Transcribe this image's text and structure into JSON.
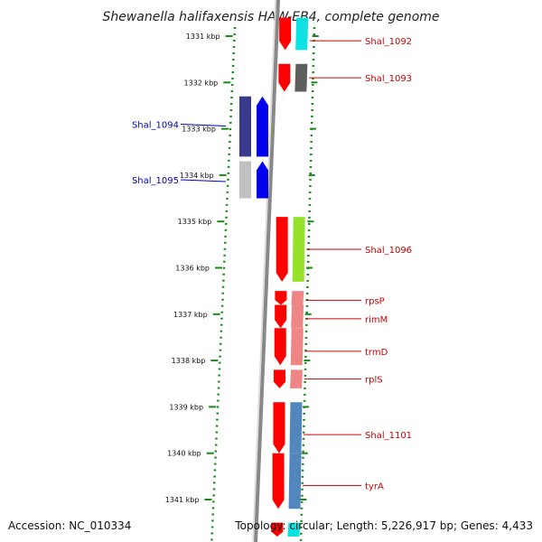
{
  "title": "Shewanella halifaxensis HAW-EB4, complete genome",
  "footer": {
    "accession": "Accession: NC_010334",
    "topology": "Topology: circular; Length: 5,226,917 bp; Genes: 4,433"
  },
  "scale": {
    "start_kbp": 1330.6,
    "end_kbp": 1341.8,
    "labels": [
      "1331 kbp",
      "1332 kbp",
      "1333 kbp",
      "1334 kbp",
      "1335 kbp",
      "1336 kbp",
      "1337 kbp",
      "1338 kbp",
      "1339 kbp",
      "1340 kbp",
      "1341 kbp"
    ]
  },
  "colors": {
    "forward_label": "#cc0000",
    "reverse_label": "#0000bb",
    "tick": "#1a8a1a",
    "backbone": "#777777"
  },
  "genes": [
    {
      "name": "Shal_1092",
      "strand": "+",
      "start_kbp": 1330.6,
      "end_kbp": 1331.3,
      "color": "#00e0e0",
      "label_y_kbp": 1331.1
    },
    {
      "name": "Shal_1093",
      "strand": "+",
      "start_kbp": 1331.6,
      "end_kbp": 1332.2,
      "color": "#555555",
      "label_y_kbp": 1331.9
    },
    {
      "name": "Shal_1094",
      "strand": "-",
      "start_kbp": 1332.3,
      "end_kbp": 1333.6,
      "color": "#3a3a8c",
      "label_y_kbp": 1332.9
    },
    {
      "name": "Shal_1095",
      "strand": "-",
      "start_kbp": 1333.7,
      "end_kbp": 1334.5,
      "color": "#c0c0c0",
      "label_y_kbp": 1334.1
    },
    {
      "name": "Shal_1096",
      "strand": "+",
      "start_kbp": 1334.9,
      "end_kbp": 1336.3,
      "color": "#90e020",
      "label_y_kbp": 1335.6
    },
    {
      "name": "rpsP",
      "strand": "+",
      "start_kbp": 1336.5,
      "end_kbp": 1336.8,
      "color": "#ee8080",
      "label_y_kbp": 1336.7
    },
    {
      "name": "rimM",
      "strand": "+",
      "start_kbp": 1336.8,
      "end_kbp": 1337.3,
      "color": "#ee8080",
      "label_y_kbp": 1337.1
    },
    {
      "name": "trmD",
      "strand": "+",
      "start_kbp": 1337.3,
      "end_kbp": 1338.1,
      "color": "#ee8080",
      "label_y_kbp": 1337.8
    },
    {
      "name": "rplS",
      "strand": "+",
      "start_kbp": 1338.2,
      "end_kbp": 1338.6,
      "color": "#ee8080",
      "label_y_kbp": 1338.4
    },
    {
      "name": "Shal_1101",
      "strand": "+",
      "start_kbp": 1338.9,
      "end_kbp": 1340.0,
      "color": "#4a80b8",
      "label_y_kbp": 1339.6
    },
    {
      "name": "tyrA",
      "strand": "+",
      "start_kbp": 1340.0,
      "end_kbp": 1341.2,
      "color": "#4a80b8",
      "label_y_kbp": 1340.7
    },
    {
      "name": "",
      "strand": "+",
      "start_kbp": 1341.5,
      "end_kbp": 1341.8,
      "color": "#00e0e0",
      "label_y_kbp": null
    }
  ]
}
